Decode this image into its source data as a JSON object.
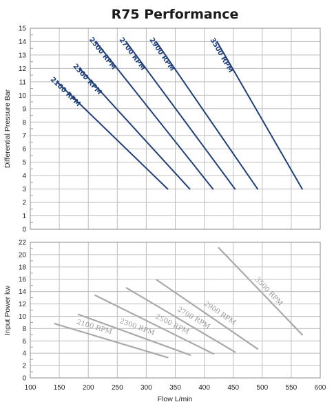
{
  "chart_data": [
    {
      "type": "line",
      "title": "R75 Performance",
      "xlabel": "",
      "ylabel": "Differential Pressure Bar",
      "xlim": [
        100,
        600
      ],
      "ylim": [
        0,
        15
      ],
      "x_ticks": [
        100,
        150,
        200,
        250,
        300,
        350,
        400,
        450,
        500,
        550,
        600
      ],
      "y_ticks": [
        0,
        1,
        2,
        3,
        4,
        5,
        6,
        7,
        8,
        9,
        10,
        11,
        12,
        13,
        14,
        15
      ],
      "grid": true,
      "color": "#1f3f7a",
      "series": [
        {
          "name": "2100 RPM",
          "x": [
            146,
            337
          ],
          "y": [
            11,
            3
          ]
        },
        {
          "name": "2300 RPM",
          "x": [
            185,
            375
          ],
          "y": [
            12,
            3
          ]
        },
        {
          "name": "2500 RPM",
          "x": [
            213,
            415
          ],
          "y": [
            14,
            3
          ]
        },
        {
          "name": "2700 RPM",
          "x": [
            265,
            453
          ],
          "y": [
            14,
            3
          ]
        },
        {
          "name": "2900 RPM",
          "x": [
            317,
            492
          ],
          "y": [
            14,
            3
          ]
        },
        {
          "name": "3500 RPM",
          "x": [
            422,
            569
          ],
          "y": [
            14,
            3
          ]
        }
      ]
    },
    {
      "type": "line",
      "title": "",
      "xlabel": "Flow L/min",
      "ylabel": "Input Power kw",
      "xlim": [
        100,
        600
      ],
      "ylim": [
        0,
        22
      ],
      "x_ticks": [
        100,
        150,
        200,
        250,
        300,
        350,
        400,
        450,
        500,
        550,
        600
      ],
      "y_ticks": [
        0,
        2,
        4,
        6,
        8,
        10,
        12,
        14,
        16,
        18,
        20,
        22
      ],
      "grid": true,
      "color": "#a9a9a9",
      "series": [
        {
          "name": "2100 RPM",
          "x": [
            142,
            337
          ],
          "y": [
            8.8,
            3.3
          ]
        },
        {
          "name": "2300 RPM",
          "x": [
            183,
            376
          ],
          "y": [
            10.3,
            3.7
          ]
        },
        {
          "name": "2500 RPM",
          "x": [
            212,
            416
          ],
          "y": [
            13.4,
            3.9
          ]
        },
        {
          "name": "2700 RPM",
          "x": [
            266,
            453
          ],
          "y": [
            14.6,
            4.2
          ]
        },
        {
          "name": "2900 RPM",
          "x": [
            318,
            492
          ],
          "y": [
            15.9,
            4.7
          ]
        },
        {
          "name": "3500 RPM",
          "x": [
            425,
            569
          ],
          "y": [
            21.1,
            7.0
          ]
        }
      ]
    }
  ]
}
